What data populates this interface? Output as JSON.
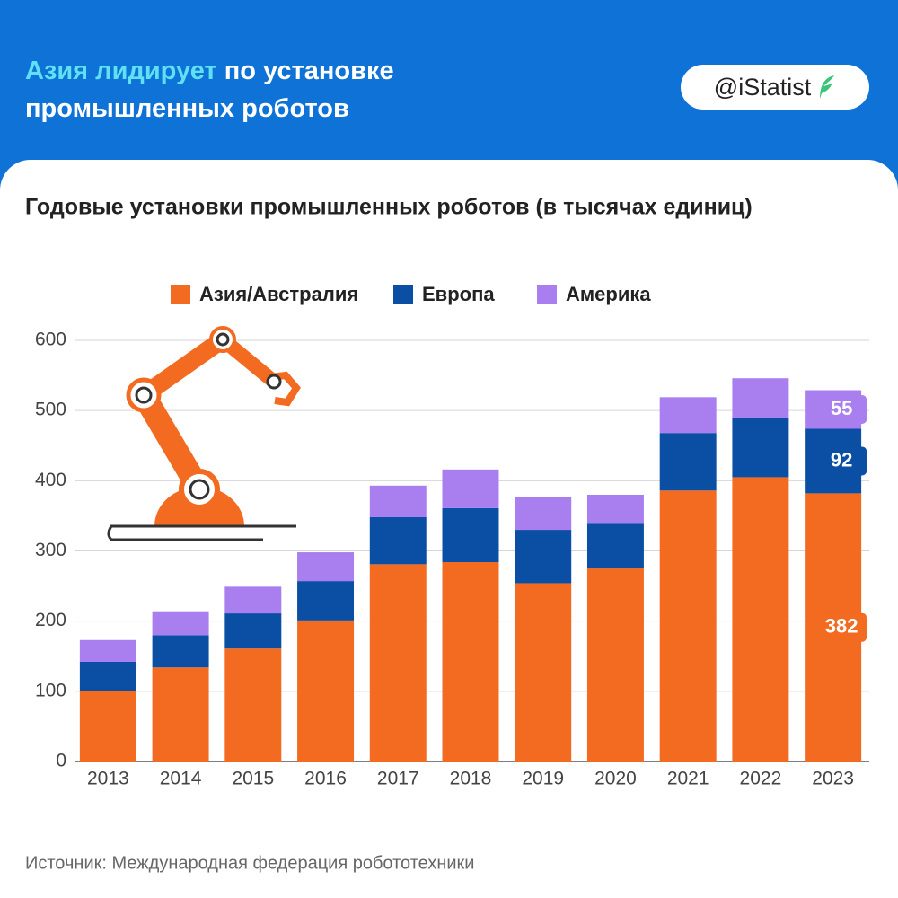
{
  "header": {
    "highlight": "Азия лидирует",
    "title": "по установке промышленных роботов",
    "brand": "@iStatist"
  },
  "chart_data": {
    "type": "stacked_bar",
    "title": "Годовые установки промышленных роботов (в тысячах единиц)",
    "source": "Источник: Международная федерация робототехники",
    "categories": [
      "2013",
      "2014",
      "2015",
      "2016",
      "2017",
      "2018",
      "2019",
      "2020",
      "2021",
      "2022",
      "2023"
    ],
    "series": [
      {
        "name": "Азия/Австралия",
        "color": "#f26b21",
        "values": [
          100,
          134,
          161,
          201,
          281,
          284,
          254,
          275,
          386,
          405,
          382
        ]
      },
      {
        "name": "Европа",
        "color": "#0a4fa3",
        "values": [
          42,
          46,
          50,
          56,
          67,
          77,
          76,
          65,
          82,
          85,
          92
        ]
      },
      {
        "name": "Америка",
        "color": "#a97ff0",
        "values": [
          31,
          34,
          38,
          41,
          45,
          55,
          47,
          40,
          51,
          56,
          55
        ]
      }
    ],
    "ylim": [
      0,
      600
    ],
    "yticks": [
      0,
      100,
      200,
      300,
      400,
      500,
      600
    ],
    "grid": true
  }
}
